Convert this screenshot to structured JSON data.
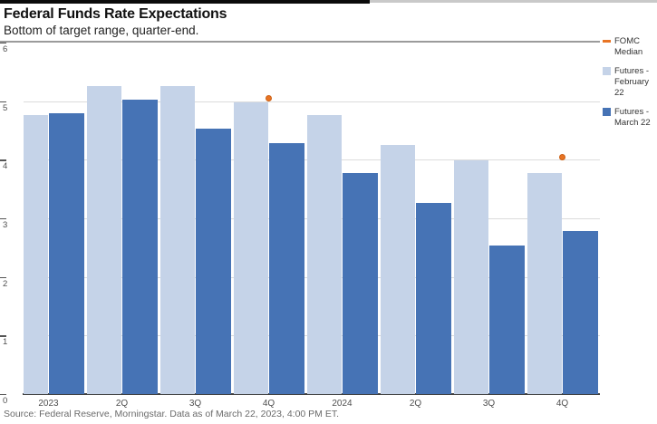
{
  "header": {
    "title": "Federal Funds Rate Expectations",
    "subtitle": "Bottom of target range, quarter-end."
  },
  "source": {
    "text": "Source: Federal Reserve, Morningstar. Data as of March 22, 2023, 4:00 PM ET."
  },
  "legend": {
    "items": [
      {
        "label": "FOMC Median",
        "marker": "dash-icon",
        "color": "#e87424"
      },
      {
        "label": "Futures - February 22",
        "marker": "square-icon",
        "color": "#c5d3e8"
      },
      {
        "label": "Futures - March 22",
        "marker": "square-icon",
        "color": "#4673b5"
      }
    ]
  },
  "chart_data": {
    "type": "bar",
    "title": "Federal Funds Rate Expectations",
    "subtitle": "Bottom of target range, quarter-end.",
    "categories": [
      "2023",
      "2Q",
      "3Q",
      "4Q",
      "2024",
      "2Q",
      "3Q",
      "4Q"
    ],
    "series": [
      {
        "name": "Futures - February 22",
        "color": "#c5d3e8",
        "values": [
          4.76,
          5.26,
          5.26,
          4.98,
          4.76,
          4.26,
          3.99,
          3.78
        ]
      },
      {
        "name": "Futures - March 22",
        "color": "#4673b5",
        "values": [
          4.79,
          5.02,
          4.53,
          4.28,
          3.78,
          3.27,
          2.53,
          2.78
        ]
      }
    ],
    "fomc_median": {
      "name": "FOMC Median",
      "color": "#e87424",
      "points": [
        {
          "category_index": 3,
          "category": "4Q 2023",
          "value": 5.05
        },
        {
          "category_index": 7,
          "category": "4Q 2024",
          "value": 4.05
        }
      ]
    },
    "ylabel": "",
    "xlabel": "",
    "ylim": [
      0,
      6
    ],
    "yticks": [
      0,
      1,
      2,
      3,
      4,
      5,
      6
    ],
    "grid": true,
    "legend_position": "right"
  }
}
